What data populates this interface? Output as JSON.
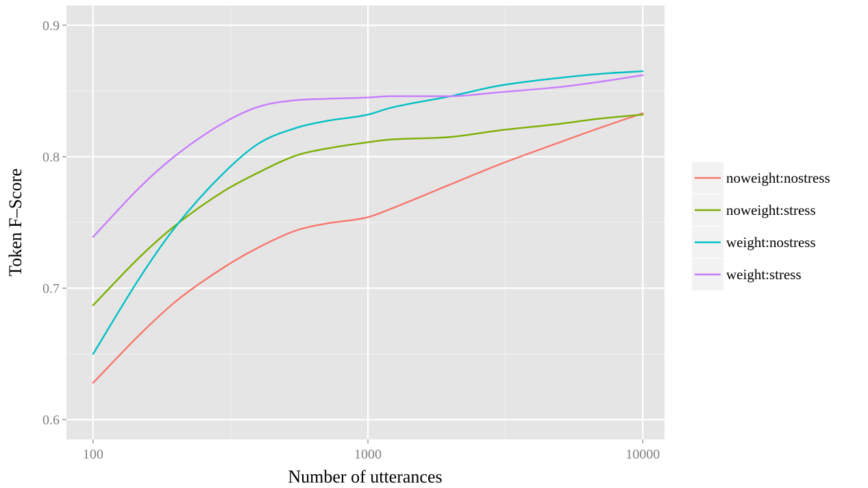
{
  "chart_data": {
    "type": "line",
    "xlabel": "Number of utterances",
    "ylabel": "Token F–Score",
    "x_scale": "log10",
    "xlim": [
      80,
      12000
    ],
    "ylim": [
      0.585,
      0.915
    ],
    "x_ticks": [
      {
        "value": 100,
        "label": "100"
      },
      {
        "value": 1000,
        "label": "1000"
      },
      {
        "value": 10000,
        "label": "10000"
      }
    ],
    "x_minor_ticks": [
      316.2,
      3162.3
    ],
    "y_ticks": [
      {
        "value": 0.6,
        "label": "0.6"
      },
      {
        "value": 0.7,
        "label": "0.7"
      },
      {
        "value": 0.8,
        "label": "0.8"
      },
      {
        "value": 0.9,
        "label": "0.9"
      }
    ],
    "y_minor_ticks": [
      0.65,
      0.75,
      0.85
    ],
    "grid": true,
    "legend_position": "right",
    "x": [
      100,
      150,
      200,
      300,
      400,
      550,
      700,
      1000,
      1200,
      2000,
      3000,
      5000,
      7000,
      10000
    ],
    "series": [
      {
        "name": "noweight:nostress",
        "color": "#f8766d",
        "values": [
          0.628,
          0.666,
          0.69,
          0.716,
          0.731,
          0.744,
          0.749,
          0.754,
          0.76,
          0.779,
          0.794,
          0.811,
          0.822,
          0.833
        ]
      },
      {
        "name": "noweight:stress",
        "color": "#7cae00",
        "values": [
          0.687,
          0.725,
          0.748,
          0.774,
          0.788,
          0.801,
          0.806,
          0.811,
          0.813,
          0.815,
          0.82,
          0.825,
          0.829,
          0.832
        ]
      },
      {
        "name": "weight:nostress",
        "color": "#00bfc4",
        "values": [
          0.65,
          0.71,
          0.747,
          0.788,
          0.81,
          0.822,
          0.827,
          0.832,
          0.837,
          0.846,
          0.854,
          0.86,
          0.863,
          0.865
        ]
      },
      {
        "name": "weight:stress",
        "color": "#c77cff",
        "values": [
          0.739,
          0.778,
          0.801,
          0.826,
          0.838,
          0.843,
          0.844,
          0.845,
          0.846,
          0.846,
          0.849,
          0.853,
          0.857,
          0.862
        ]
      }
    ]
  }
}
